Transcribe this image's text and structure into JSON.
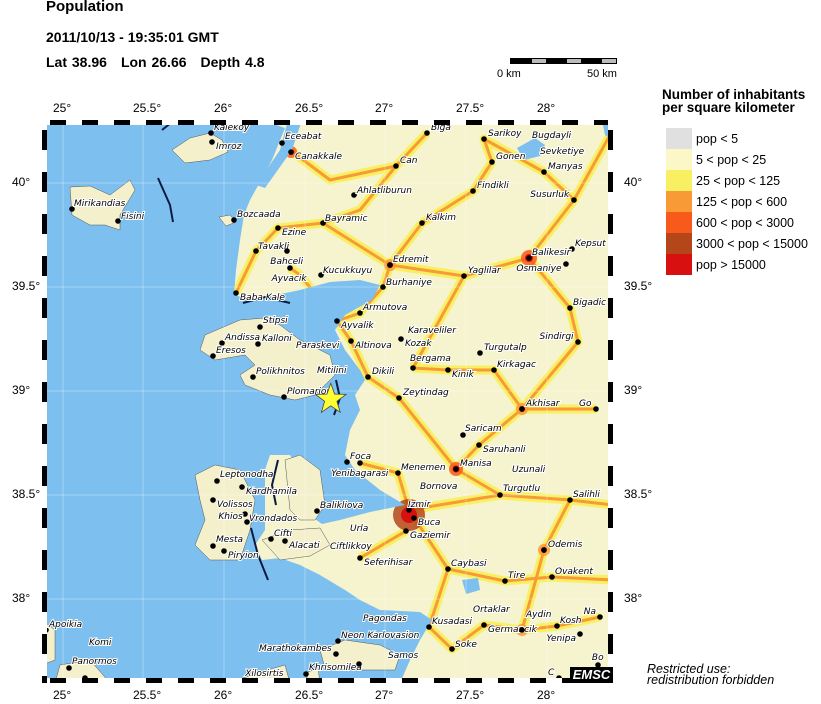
{
  "header": {
    "title": "Population",
    "datetime": "2011/10/13 - 19:35:01 GMT",
    "lat_label": "Lat 38.96",
    "lon_label": "Lon  26.66",
    "depth_label": "Depth  4.8"
  },
  "scale": {
    "start": "0 km",
    "end": "50 km"
  },
  "map": {
    "lon_ticks": [
      "25°",
      "25.5°",
      "26°",
      "26.5°",
      "27°",
      "27.5°",
      "28°"
    ],
    "lat_ticks": [
      "40°",
      "39.5°",
      "39°",
      "38.5°",
      "38°"
    ],
    "epicenter": {
      "lat": 38.96,
      "lon": 26.66,
      "icon": "star-icon",
      "color": "#ffff33"
    },
    "sea_color": "#7dc0f0",
    "places": [
      "Kalekoy",
      "Imroz",
      "Eceabat",
      "Canakkale",
      "Mirikandias",
      "Fisini",
      "Bozcaada",
      "Ezine",
      "Bayramic",
      "Tavakli",
      "Bahceli",
      "Ayvacik",
      "Kucukkuyu",
      "Baba Kale",
      "Biga",
      "Sarikoy",
      "Bugdayli",
      "Gonen",
      "Sevketiye",
      "Manyas",
      "Can",
      "Ahlatliburun",
      "Findikli",
      "Susurluk",
      "Kalkim",
      "Kepsut",
      "Balikesir",
      "Osmaniye",
      "Edremit",
      "Yaglilar",
      "Burhaniye",
      "Bigadic",
      "Armutova",
      "Ayvalik",
      "Paraskevi",
      "Karaveliler",
      "Kozak",
      "Altinova",
      "Stipsi",
      "Andissa",
      "Kalloni",
      "Eresos",
      "Mitilini",
      "Polikhnitos",
      "Plomarion",
      "Dikili",
      "Zeytindag",
      "Turgutalp",
      "Bergama",
      "Kinik",
      "Kirkagac",
      "Sindirgi",
      "Akhisar",
      "Go",
      "Saricam",
      "Saruhanli",
      "Manisa",
      "Menemen",
      "Foca",
      "Yenibagarasi",
      "Turgutlu",
      "Uzunali",
      "Salihli",
      "Bornova",
      "Izmir",
      "Buca",
      "Gaziemir",
      "Leptonodha",
      "Kardhamila",
      "Volissos",
      "Vrondados",
      "Khios",
      "Balikliova",
      "Urla",
      "Ciftlikkoy",
      "Cifti",
      "Alacati",
      "Mesta",
      "Piryion",
      "Seferihisar",
      "Odemis",
      "Caybasi",
      "Tire",
      "Ovakent",
      "Kusadasi",
      "Ortaklar",
      "Germancik",
      "Aydin",
      "Kosh",
      "Yenipa",
      "Na",
      "Soke",
      "Bo",
      "C",
      "Apoikia",
      "Panormos",
      "Komi",
      "Xilosirtis",
      "Khrisomilea",
      "Neon Karlovasion",
      "Samos",
      "Marathokambes",
      "Pagondas"
    ]
  },
  "legend": {
    "title_line1": "Number of inhabitants",
    "title_line2": "per square kilometer",
    "items": [
      {
        "label": "pop < 5",
        "color": "#e0e0e0"
      },
      {
        "label": "5 < pop < 25",
        "color": "#fbf7c6"
      },
      {
        "label": "25 < pop < 125",
        "color": "#f8f062"
      },
      {
        "label": "125 < pop < 600",
        "color": "#f89a35"
      },
      {
        "label": "600 < pop < 3000",
        "color": "#f85a1c"
      },
      {
        "label": "3000 < pop < 15000",
        "color": "#b4461a"
      },
      {
        "label": "pop > 15000",
        "color": "#d81010"
      }
    ]
  },
  "footer": {
    "logo": "EMSC",
    "restricted_line1": "Restricted use:",
    "restricted_line2": "redistribution forbidden"
  }
}
